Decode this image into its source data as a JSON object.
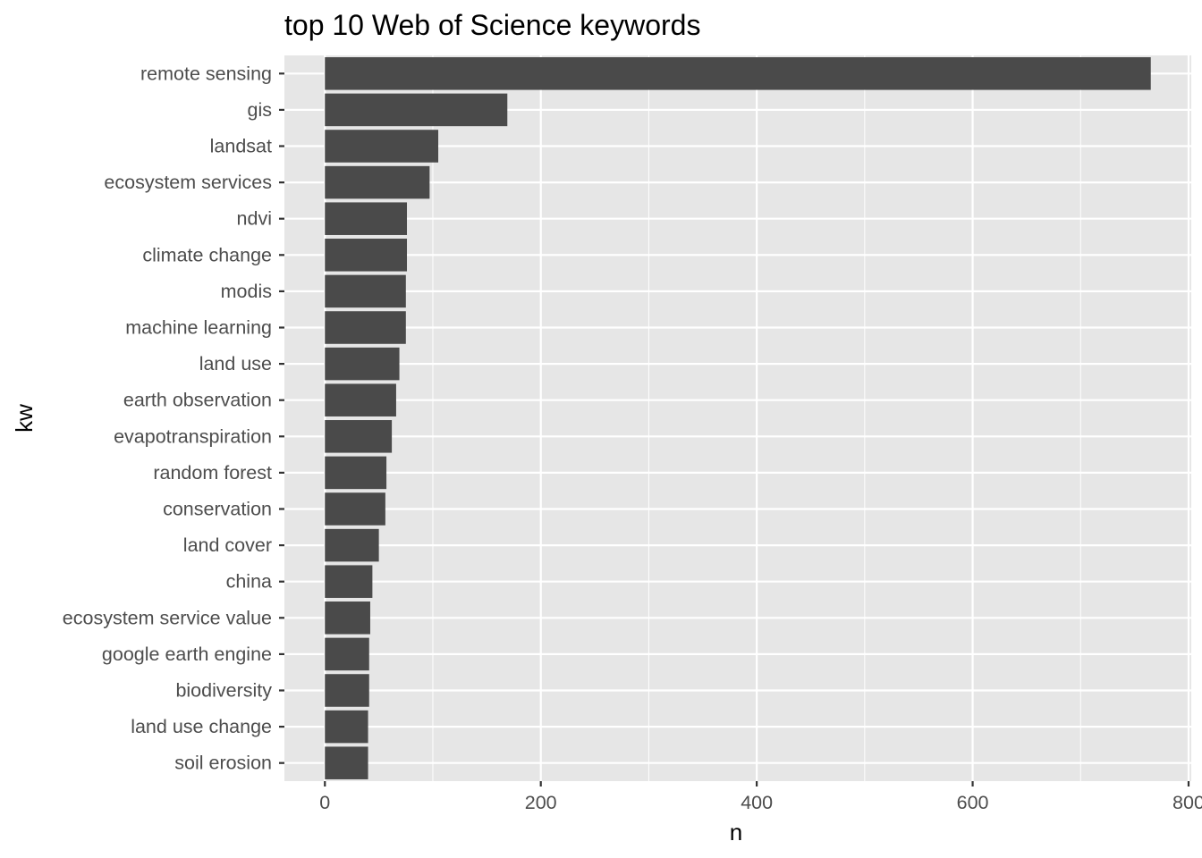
{
  "chart_data": {
    "type": "bar",
    "orientation": "horizontal",
    "title": "top 10 Web of Science keywords",
    "xlabel": "n",
    "ylabel": "kw",
    "categories": [
      "remote sensing",
      "gis",
      "landsat",
      "ecosystem services",
      "ndvi",
      "climate change",
      "modis",
      "machine learning",
      "land use",
      "earth observation",
      "evapotranspiration",
      "random forest",
      "conservation",
      "land cover",
      "china",
      "ecosystem service value",
      "google earth engine",
      "biodiversity",
      "land use change",
      "soil erosion"
    ],
    "values": [
      765,
      169,
      105,
      97,
      76,
      76,
      75,
      75,
      69,
      66,
      62,
      57,
      56,
      50,
      44,
      42,
      41,
      41,
      40,
      40
    ],
    "xlim": [
      -37.5,
      802.5
    ],
    "xticks": [
      0,
      200,
      400,
      600,
      800
    ],
    "xtick_labels": [
      "0",
      "200",
      "400",
      "600",
      "800"
    ],
    "grid": true,
    "colors": {
      "bar": "#4a4a4a",
      "panel": "#e6e6e6",
      "grid": "#ffffff"
    }
  }
}
